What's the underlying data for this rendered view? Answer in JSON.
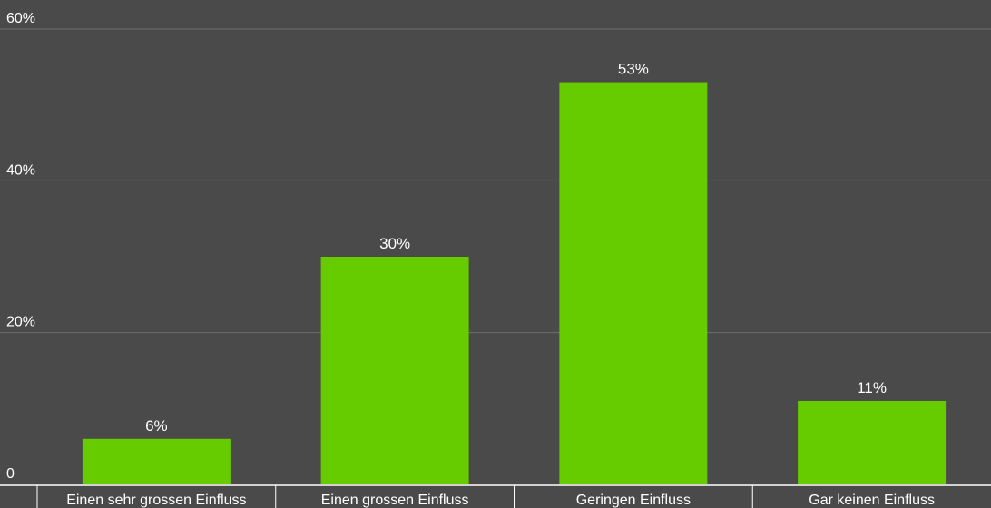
{
  "chart_data": {
    "type": "bar",
    "categories": [
      "Einen sehr grossen Einfluss",
      "Einen grossen Einfluss",
      "Geringen Einfluss",
      "Gar keinen Einfluss"
    ],
    "values": [
      6,
      30,
      53,
      11
    ],
    "value_labels": [
      "6%",
      "30%",
      "53%",
      "11%"
    ],
    "yticks": [
      0,
      20,
      40,
      60
    ],
    "ytick_labels": [
      "0",
      "20%",
      "40%",
      "60%"
    ],
    "ylim": [
      0,
      60
    ],
    "grid": true,
    "title": "",
    "xlabel": "",
    "ylabel": "",
    "colors": {
      "background": "#4a4a4a",
      "bar": "#66cc00",
      "grid": "#6e6e6e",
      "axis": "#ffffff",
      "text": "#ffffff"
    }
  }
}
